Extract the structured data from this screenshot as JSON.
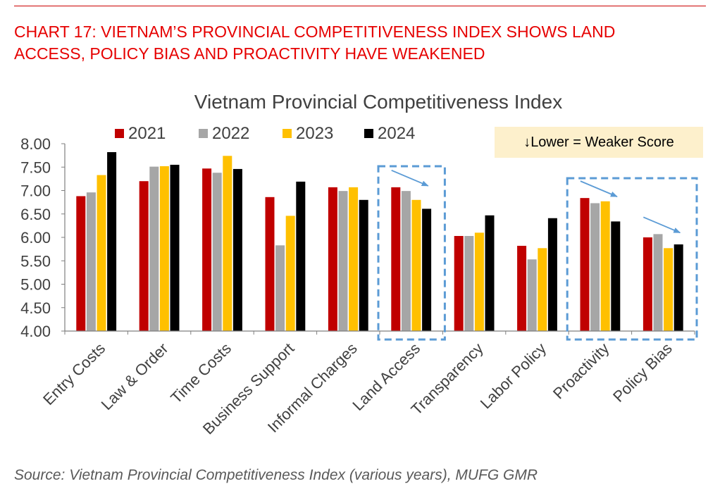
{
  "headline": {
    "line1": "CHART 17: VIETNAM’S PROVINCIAL COMPETITIVENESS INDEX SHOWS LAND",
    "line2": "ACCESS, POLICY BIAS AND PROACTIVITY HAVE WEAKENED"
  },
  "note": "↓Lower = Weaker Score",
  "source": "Source: Vietnam Provincial Competitiveness Index (various years), MUFG GMR",
  "colors": {
    "headline": "#e60000",
    "s2021": "#c00000",
    "s2022": "#a6a6a6",
    "s2023": "#ffc000",
    "s2024": "#000000",
    "highlight": "#5b9bd5",
    "note_bg": "#fdf0cc"
  },
  "chart_data": {
    "type": "bar",
    "title": "Vietnam Provincial Competitiveness Index",
    "categories": [
      "Entry Costs",
      "Law & Order",
      "Time Costs",
      "Business Support",
      "Informal Charges",
      "Land Access",
      "Transparency",
      "Labor Policy",
      "Proactivity",
      "Policy Bias"
    ],
    "series": [
      {
        "name": "2021",
        "color": "#c00000",
        "values": [
          6.88,
          7.2,
          7.47,
          6.86,
          7.07,
          7.07,
          6.03,
          5.82,
          6.84,
          6.0
        ]
      },
      {
        "name": "2022",
        "color": "#a6a6a6",
        "values": [
          6.96,
          7.51,
          7.38,
          5.83,
          6.99,
          6.99,
          6.03,
          5.53,
          6.73,
          6.07
        ]
      },
      {
        "name": "2023",
        "color": "#ffc000",
        "values": [
          7.33,
          7.52,
          7.74,
          6.46,
          7.07,
          6.8,
          6.1,
          5.77,
          6.77,
          5.77
        ]
      },
      {
        "name": "2024",
        "color": "#000000",
        "values": [
          7.82,
          7.55,
          7.46,
          7.19,
          6.8,
          6.61,
          6.47,
          6.41,
          6.34,
          5.85
        ]
      }
    ],
    "ylim": [
      4.0,
      8.0
    ],
    "yticks": [
      "4.00",
      "4.50",
      "5.00",
      "5.50",
      "6.00",
      "6.50",
      "7.00",
      "7.50",
      "8.00"
    ],
    "legend_position": "top",
    "highlighted_categories": [
      [
        "Land Access"
      ],
      [
        "Proactivity",
        "Policy Bias"
      ]
    ],
    "grid": false
  }
}
